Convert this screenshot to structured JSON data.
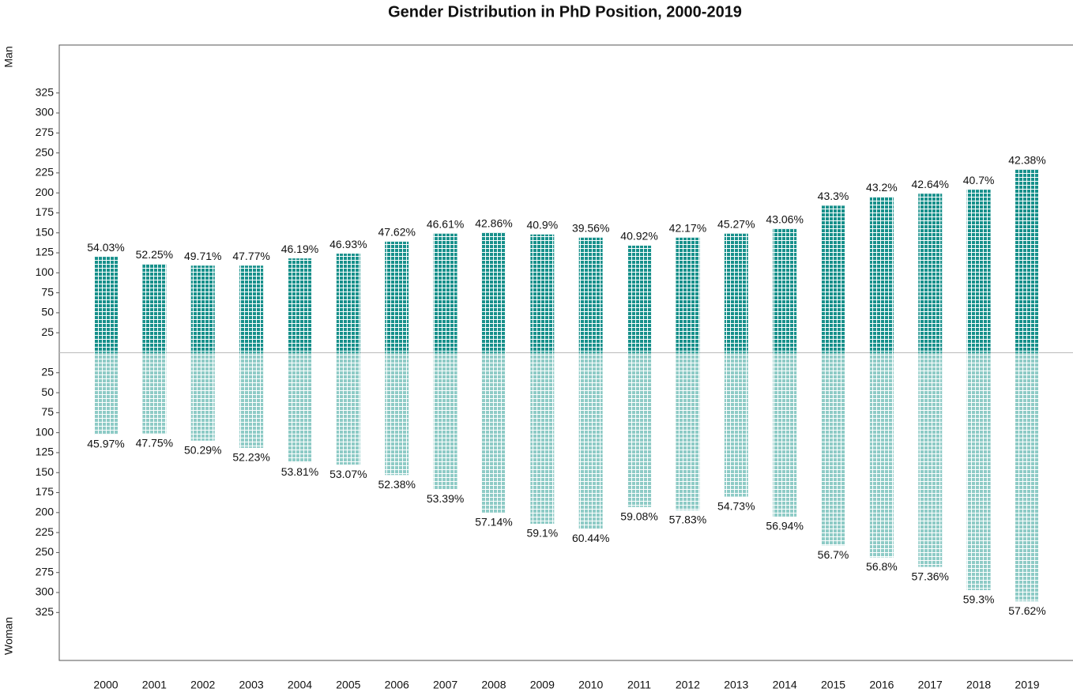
{
  "chart_data": {
    "type": "waffle-diverging",
    "title": "Gender Distribution in PhD Position, 2000-2019",
    "ylabel_top": "Man",
    "ylabel_bottom": "Woman",
    "categories": [
      "2000",
      "2001",
      "2002",
      "2003",
      "2004",
      "2005",
      "2006",
      "2007",
      "2008",
      "2009",
      "2010",
      "2011",
      "2012",
      "2013",
      "2014",
      "2015",
      "2016",
      "2017",
      "2018",
      "2019"
    ],
    "series": [
      {
        "name": "Man",
        "color": "#17908b",
        "direction": "up",
        "values": [
          120,
          111,
          109,
          109,
          118,
          124,
          139,
          149,
          150,
          148,
          144,
          134,
          144,
          149,
          155,
          184,
          195,
          199,
          204,
          229
        ],
        "shares": [
          54.03,
          52.25,
          49.71,
          47.77,
          46.19,
          46.93,
          47.62,
          46.61,
          42.86,
          40.9,
          39.56,
          40.92,
          42.17,
          45.27,
          43.06,
          43.3,
          43.2,
          42.64,
          40.7,
          42.38
        ],
        "share_labels": [
          "54.03%",
          "52.25%",
          "49.71%",
          "47.77%",
          "46.19%",
          "46.93%",
          "47.62%",
          "46.61%",
          "42.86%",
          "40.9%",
          "39.56%",
          "40.92%",
          "42.17%",
          "45.27%",
          "43.06%",
          "43.3%",
          "43.2%",
          "42.64%",
          "40.7%",
          "42.38%"
        ]
      },
      {
        "name": "Woman",
        "color": "#8ecbc6",
        "direction": "down",
        "values": [
          102,
          101,
          110,
          119,
          137,
          140,
          153,
          171,
          200,
          214,
          220,
          193,
          197,
          180,
          205,
          241,
          256,
          268,
          297,
          311
        ],
        "shares": [
          45.97,
          47.75,
          50.29,
          52.23,
          53.81,
          53.07,
          52.38,
          53.39,
          57.14,
          59.1,
          60.44,
          59.08,
          57.83,
          54.73,
          56.94,
          56.7,
          56.8,
          57.36,
          59.3,
          57.62
        ],
        "share_labels": [
          "45.97%",
          "47.75%",
          "50.29%",
          "52.23%",
          "53.81%",
          "53.07%",
          "52.38%",
          "53.39%",
          "57.14%",
          "59.1%",
          "60.44%",
          "59.08%",
          "57.83%",
          "54.73%",
          "56.94%",
          "56.7%",
          "56.8%",
          "57.36%",
          "59.3%",
          "57.62%"
        ]
      }
    ],
    "ylim": [
      -385,
      385
    ],
    "yticks": [
      25,
      50,
      75,
      100,
      125,
      150,
      175,
      200,
      225,
      250,
      275,
      300,
      325,
      {
        "value": -25,
        "label": "25"
      },
      {
        "value": -50,
        "label": "50"
      },
      {
        "value": -75,
        "label": "75"
      },
      {
        "value": -100,
        "label": "100"
      },
      {
        "value": -125,
        "label": "125"
      },
      {
        "value": -150,
        "label": "150"
      },
      {
        "value": -175,
        "label": "175"
      },
      {
        "value": -200,
        "label": "200"
      },
      {
        "value": -225,
        "label": "225"
      },
      {
        "value": -250,
        "label": "250"
      },
      {
        "value": -275,
        "label": "275"
      },
      {
        "value": -300,
        "label": "300"
      },
      {
        "value": -325,
        "label": "325"
      }
    ]
  }
}
